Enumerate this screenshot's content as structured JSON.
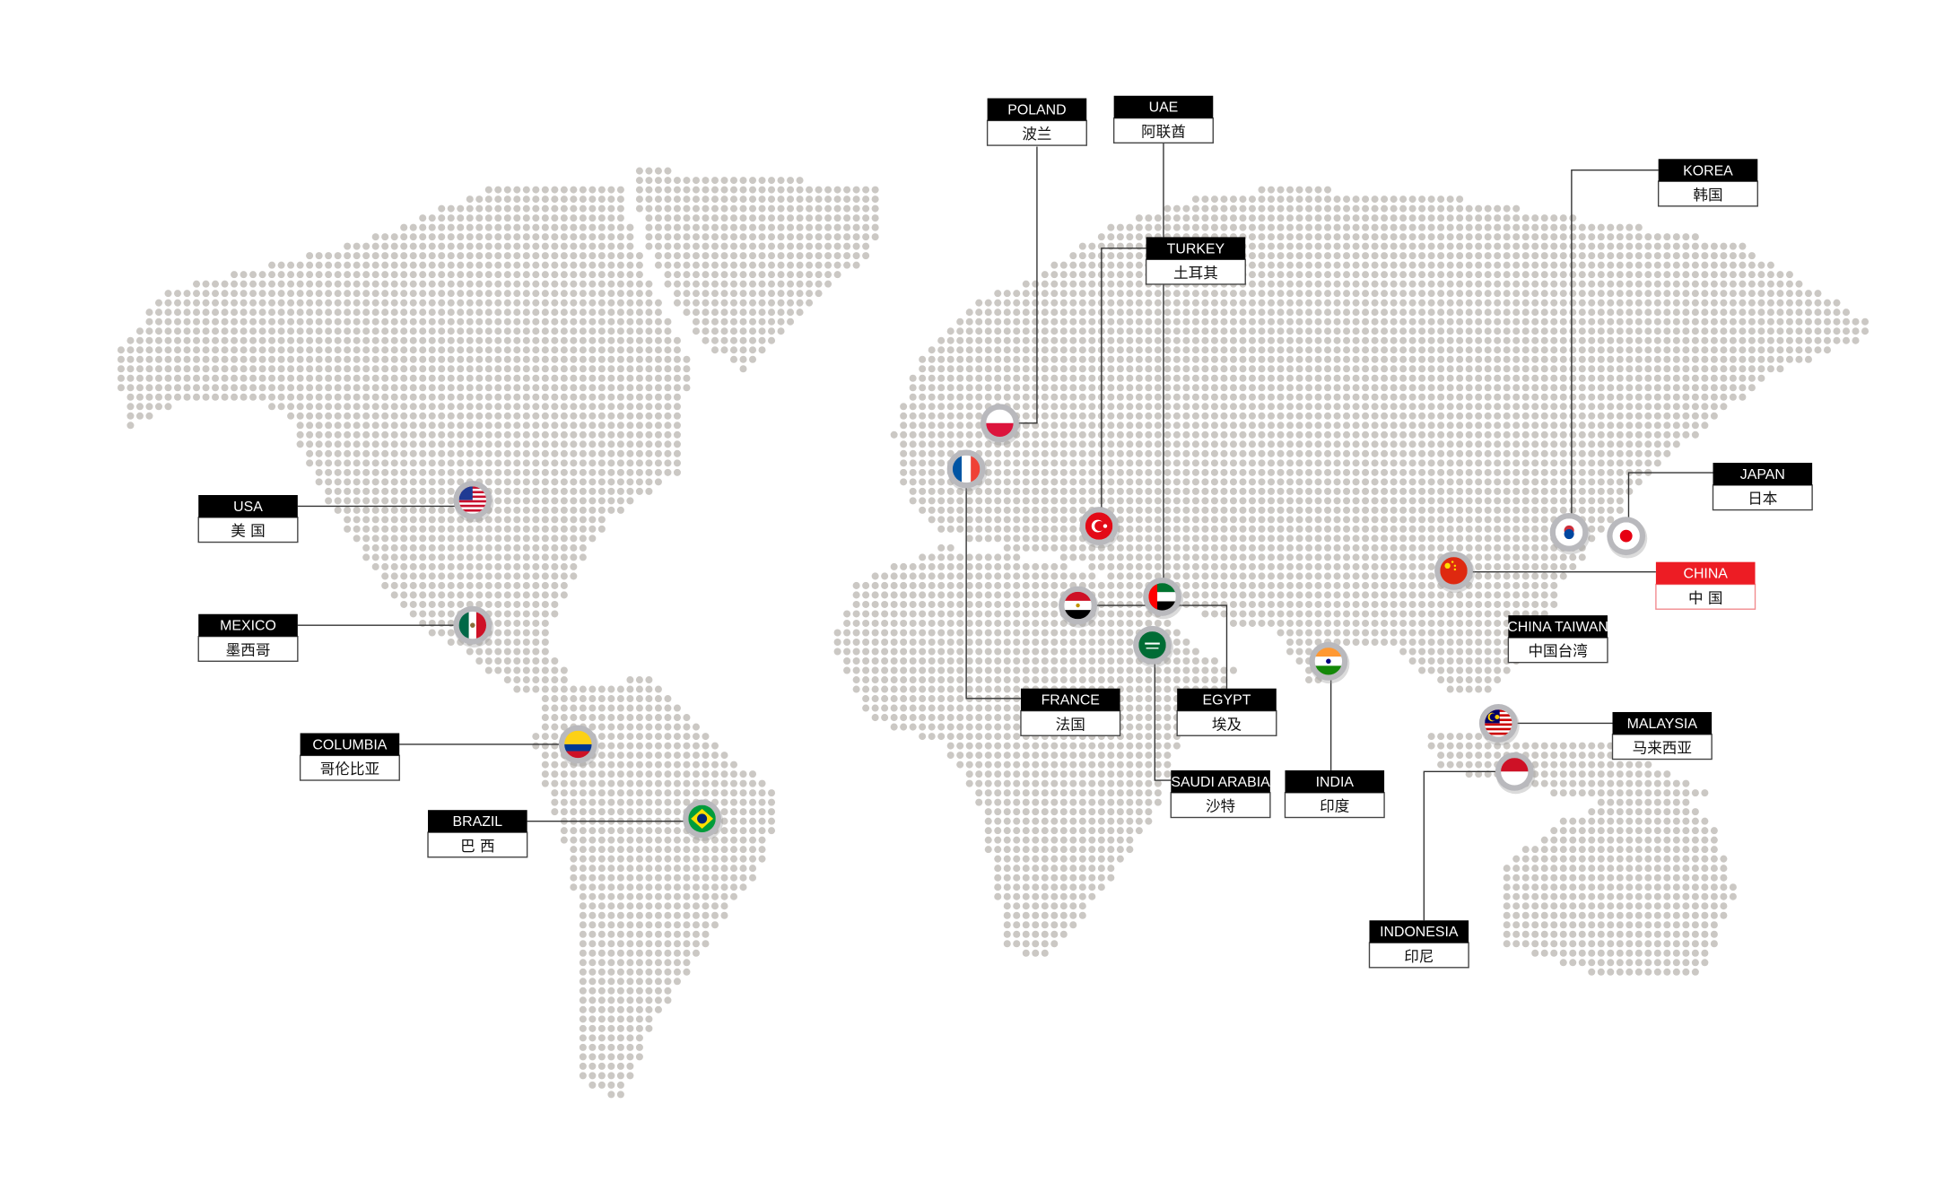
{
  "colors": {
    "dot": "#cbc8c4",
    "label_header": "#000000",
    "highlight": "#ed1c24",
    "ring": "#b9b9bd"
  },
  "locations": [
    {
      "id": "usa",
      "en": "USA",
      "cn": "美 国",
      "flag": "usa-flag-icon"
    },
    {
      "id": "mexico",
      "en": "MEXICO",
      "cn": "墨西哥",
      "flag": "mexico-flag-icon"
    },
    {
      "id": "columbia",
      "en": "COLUMBIA",
      "cn": "哥伦比亚",
      "flag": "colombia-flag-icon"
    },
    {
      "id": "brazil",
      "en": "BRAZIL",
      "cn": "巴 西",
      "flag": "brazil-flag-icon"
    },
    {
      "id": "poland",
      "en": "POLAND",
      "cn": "波兰",
      "flag": "poland-flag-icon"
    },
    {
      "id": "uae",
      "en": "UAE",
      "cn": "阿联酋",
      "flag": "uae-flag-icon"
    },
    {
      "id": "turkey",
      "en": "TURKEY",
      "cn": "土耳其",
      "flag": "turkey-flag-icon"
    },
    {
      "id": "korea",
      "en": "KOREA",
      "cn": "韩国",
      "flag": "korea-flag-icon"
    },
    {
      "id": "japan",
      "en": "JAPAN",
      "cn": "日本",
      "flag": "japan-flag-icon"
    },
    {
      "id": "china",
      "en": "CHINA",
      "cn": "中 国",
      "flag": "china-flag-icon",
      "highlight": true
    },
    {
      "id": "taiwan",
      "en": "CHINA TAIWAN",
      "cn": "中国台湾"
    },
    {
      "id": "france",
      "en": "FRANCE",
      "cn": "法国",
      "flag": "france-flag-icon"
    },
    {
      "id": "egypt",
      "en": "EGYPT",
      "cn": "埃及",
      "flag": "egypt-flag-icon"
    },
    {
      "id": "saudi",
      "en": "SAUDI ARABIA",
      "cn": "沙特",
      "flag": "saudi-arabia-flag-icon"
    },
    {
      "id": "india",
      "en": "INDIA",
      "cn": "印度",
      "flag": "india-flag-icon"
    },
    {
      "id": "malaysia",
      "en": "MALAYSIA",
      "cn": "马来西亚",
      "flag": "malaysia-flag-icon"
    },
    {
      "id": "indonesia",
      "en": "INDONESIA",
      "cn": "印尼",
      "flag": "indonesia-flag-icon"
    }
  ]
}
